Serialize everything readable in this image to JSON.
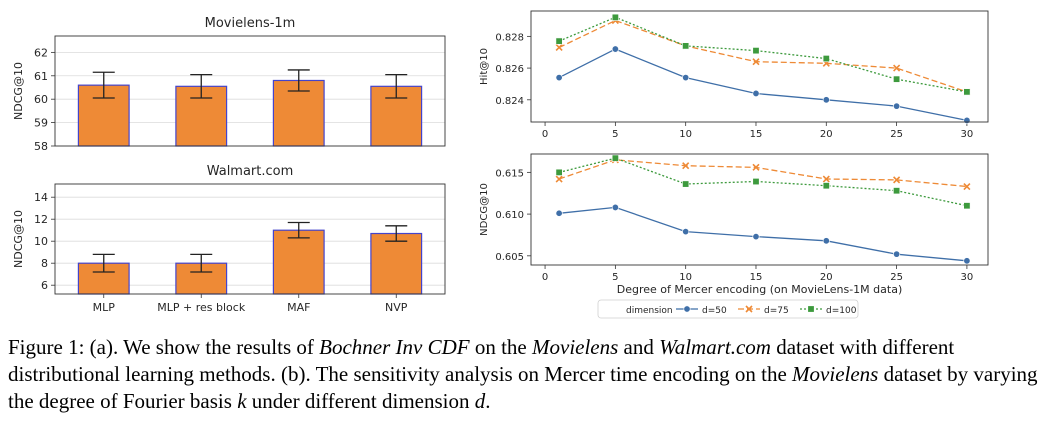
{
  "chart_data": [
    {
      "type": "bar",
      "title": "Movielens-1m",
      "ylabel": "NDCG@10",
      "xlabel": "",
      "categories": [
        "MLP",
        "MLP + res block",
        "MAF",
        "NVP"
      ],
      "values": [
        60.6,
        60.55,
        60.8,
        60.55
      ],
      "error": [
        0.55,
        0.5,
        0.45,
        0.5
      ],
      "ylim": [
        58,
        62.7
      ],
      "yticks": [
        58,
        59,
        60,
        61,
        62
      ],
      "show_xticklabels": false,
      "bar_color": "#ee8a36",
      "edge_color": "#4444cc"
    },
    {
      "type": "bar",
      "title": "Walmart.com",
      "ylabel": "NDCG@10",
      "xlabel": "",
      "categories": [
        "MLP",
        "MLP + res block",
        "MAF",
        "NVP"
      ],
      "values": [
        8.0,
        8.0,
        11.0,
        10.7
      ],
      "error": [
        0.8,
        0.8,
        0.7,
        0.7
      ],
      "ylim": [
        5.2,
        15.2
      ],
      "yticks": [
        6,
        8,
        10,
        12,
        14
      ],
      "show_xticklabels": true,
      "bar_color": "#ee8a36",
      "edge_color": "#4444cc"
    },
    {
      "type": "line",
      "title": "",
      "ylabel": "Hit@10",
      "xlabel": "",
      "x": [
        1,
        5,
        10,
        15,
        20,
        25,
        30
      ],
      "xlim": [
        -1,
        31.5
      ],
      "ylim": [
        0.8226,
        0.8296
      ],
      "xticks": [
        0,
        5,
        10,
        15,
        20,
        25,
        30
      ],
      "yticks": [
        0.824,
        0.826,
        0.828
      ],
      "ytick_labels": [
        "0.824",
        "0.826",
        "0.828"
      ],
      "series": [
        {
          "name": "d=50",
          "values": [
            0.8254,
            0.8272,
            0.8254,
            0.8244,
            0.824,
            0.8236,
            0.8227
          ]
        },
        {
          "name": "d=75",
          "values": [
            0.8273,
            0.829,
            0.8274,
            0.8264,
            0.8263,
            0.826,
            0.8245
          ]
        },
        {
          "name": "d=100",
          "values": [
            0.8277,
            0.8292,
            0.8274,
            0.8271,
            0.8266,
            0.8253,
            0.8245
          ]
        }
      ]
    },
    {
      "type": "line",
      "title": "",
      "ylabel": "NDCG@10",
      "xlabel": "Degree of Mercer encoding (on MovieLens-1M data)",
      "x": [
        1,
        5,
        10,
        15,
        20,
        25,
        30
      ],
      "xlim": [
        -1,
        31.5
      ],
      "ylim": [
        0.6039,
        0.6172
      ],
      "xticks": [
        0,
        5,
        10,
        15,
        20,
        25,
        30
      ],
      "yticks": [
        0.605,
        0.61,
        0.615
      ],
      "ytick_labels": [
        "0.605",
        "0.610",
        "0.615"
      ],
      "series": [
        {
          "name": "d=50",
          "values": [
            0.6101,
            0.6108,
            0.6079,
            0.6073,
            0.6068,
            0.6052,
            0.6044
          ]
        },
        {
          "name": "d=75",
          "values": [
            0.6142,
            0.6165,
            0.6158,
            0.6156,
            0.6142,
            0.6141,
            0.6133
          ]
        },
        {
          "name": "d=100",
          "values": [
            0.615,
            0.6167,
            0.6136,
            0.6139,
            0.6134,
            0.6128,
            0.611
          ]
        }
      ]
    }
  ],
  "legend": {
    "title": "dimension",
    "entries": [
      {
        "name": "d=50",
        "color": "#3f6fa8",
        "marker": "circle",
        "dash": "solid"
      },
      {
        "name": "d=75",
        "color": "#ee8a36",
        "marker": "cross",
        "dash": "dashed"
      },
      {
        "name": "d=100",
        "color": "#3d9a3d",
        "marker": "square",
        "dash": "dotted"
      }
    ]
  },
  "caption": {
    "p1": "Figure 1: (a). We show the results of ",
    "i1": "Bochner Inv CDF",
    "p2": " on the ",
    "i2": "Movielens",
    "p3": " and ",
    "i3": "Walmart.com",
    "p4": " dataset with different distributional learning methods. (b). The sensitivity analysis on Mercer time encoding on the ",
    "i4": "Movielens",
    "p5": " dataset by varying the degree of Fourier basis ",
    "i5": "k",
    "p6": " under different dimension ",
    "i6": "d",
    "p7": "."
  }
}
